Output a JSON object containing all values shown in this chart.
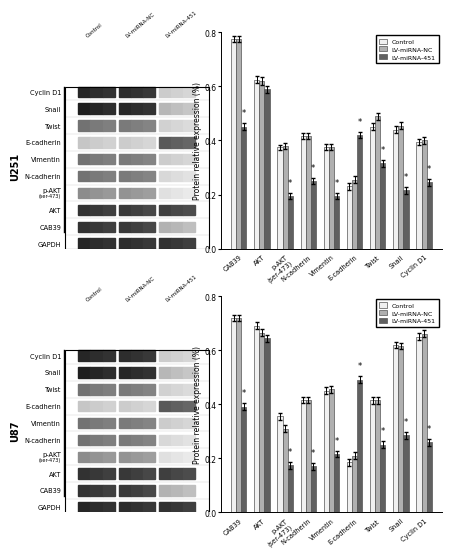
{
  "panels": [
    {
      "cell_line": "U251",
      "categories": [
        "CAB39",
        "AKT",
        "p-AKT\n(ser-473)",
        "N-cadherin",
        "Vimentin",
        "E-cadherin",
        "Twist",
        "Snail",
        "Cyclin D1"
      ],
      "control": [
        0.775,
        0.625,
        0.375,
        0.415,
        0.375,
        0.23,
        0.45,
        0.44,
        0.395
      ],
      "lv_nc": [
        0.775,
        0.62,
        0.38,
        0.415,
        0.375,
        0.255,
        0.49,
        0.455,
        0.4
      ],
      "lv_451": [
        0.45,
        0.59,
        0.195,
        0.25,
        0.195,
        0.42,
        0.315,
        0.215,
        0.245
      ],
      "control_err": [
        0.012,
        0.013,
        0.01,
        0.011,
        0.012,
        0.012,
        0.013,
        0.013,
        0.012
      ],
      "lv_nc_err": [
        0.012,
        0.013,
        0.01,
        0.011,
        0.012,
        0.012,
        0.013,
        0.013,
        0.012
      ],
      "lv_451_err": [
        0.013,
        0.013,
        0.011,
        0.012,
        0.011,
        0.012,
        0.012,
        0.013,
        0.012
      ],
      "star_451": [
        true,
        false,
        true,
        true,
        true,
        true,
        true,
        true,
        true
      ]
    },
    {
      "cell_line": "U87",
      "categories": [
        "CAB39",
        "AKT",
        "p-AKT\n(ser-473)",
        "N-cadherin",
        "Vimentin",
        "E-cadherin",
        "Twist",
        "Snail",
        "Cyclin D1"
      ],
      "control": [
        0.72,
        0.69,
        0.355,
        0.415,
        0.45,
        0.185,
        0.415,
        0.62,
        0.65
      ],
      "lv_nc": [
        0.72,
        0.665,
        0.31,
        0.415,
        0.455,
        0.21,
        0.415,
        0.615,
        0.66
      ],
      "lv_451": [
        0.39,
        0.645,
        0.175,
        0.17,
        0.215,
        0.49,
        0.25,
        0.285,
        0.26
      ],
      "control_err": [
        0.012,
        0.013,
        0.013,
        0.012,
        0.012,
        0.012,
        0.013,
        0.012,
        0.013
      ],
      "lv_nc_err": [
        0.012,
        0.013,
        0.013,
        0.012,
        0.012,
        0.012,
        0.013,
        0.012,
        0.013
      ],
      "lv_451_err": [
        0.013,
        0.013,
        0.013,
        0.013,
        0.012,
        0.013,
        0.013,
        0.013,
        0.013
      ],
      "star_451": [
        true,
        false,
        true,
        true,
        true,
        true,
        true,
        true,
        true
      ]
    }
  ],
  "colors": {
    "control": "#f0f0f0",
    "lv_nc": "#b0b0b0",
    "lv_451": "#606060"
  },
  "ylim": [
    0.0,
    0.8
  ],
  "yticks": [
    0.0,
    0.2,
    0.4,
    0.6,
    0.8
  ],
  "ylabel": "Protein relative expression (%)",
  "legend_labels": [
    "Control",
    "LV-miRNA-NC",
    "LV-miRNA-451"
  ],
  "blot_labels": [
    "Cyclin D1",
    "Snail",
    "Twist",
    "E-cadherin",
    "Vimentin",
    "N-cadherin",
    "p-AKT\n(ser-473)",
    "AKT",
    "CAB39",
    "GAPDH"
  ],
  "col_headers": [
    "Control",
    "LV-miRNA-NC",
    "LV-miRNA-451"
  ],
  "band_intensities": [
    [
      [
        0.85,
        0.82,
        0.8
      ],
      [
        0.82,
        0.8,
        0.78
      ],
      [
        0.2,
        0.18,
        0.16
      ]
    ],
    [
      [
        0.88,
        0.85,
        0.82
      ],
      [
        0.85,
        0.82,
        0.8
      ],
      [
        0.28,
        0.25,
        0.22
      ]
    ],
    [
      [
        0.55,
        0.52,
        0.5
      ],
      [
        0.52,
        0.5,
        0.48
      ],
      [
        0.18,
        0.16,
        0.14
      ]
    ],
    [
      [
        0.22,
        0.2,
        0.18
      ],
      [
        0.2,
        0.18,
        0.16
      ],
      [
        0.65,
        0.62,
        0.6
      ]
    ],
    [
      [
        0.55,
        0.52,
        0.5
      ],
      [
        0.52,
        0.5,
        0.48
      ],
      [
        0.2,
        0.18,
        0.16
      ]
    ],
    [
      [
        0.55,
        0.52,
        0.5
      ],
      [
        0.52,
        0.5,
        0.48
      ],
      [
        0.15,
        0.13,
        0.11
      ]
    ],
    [
      [
        0.45,
        0.42,
        0.4
      ],
      [
        0.42,
        0.4,
        0.38
      ],
      [
        0.12,
        0.1,
        0.08
      ]
    ],
    [
      [
        0.8,
        0.78,
        0.75
      ],
      [
        0.78,
        0.75,
        0.72
      ],
      [
        0.75,
        0.72,
        0.7
      ]
    ],
    [
      [
        0.8,
        0.78,
        0.75
      ],
      [
        0.78,
        0.75,
        0.72
      ],
      [
        0.3,
        0.28,
        0.25
      ]
    ],
    [
      [
        0.85,
        0.82,
        0.8
      ],
      [
        0.82,
        0.8,
        0.78
      ],
      [
        0.8,
        0.78,
        0.75
      ]
    ]
  ]
}
